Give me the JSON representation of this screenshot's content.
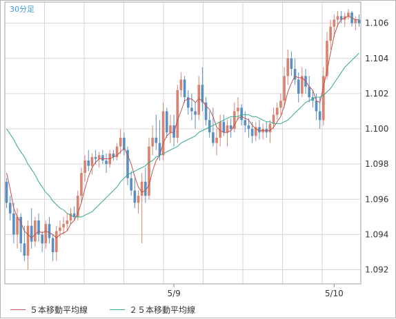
{
  "timeframe_label": "30分足",
  "colors": {
    "up": "#d9826f",
    "down": "#5b8fc4",
    "wick": "#8a8a8a",
    "ma5": "#c0504d",
    "ma25": "#33a889",
    "grid": "#d6d6d6",
    "axis_text": "#333333",
    "label_accent": "#3a9be0"
  },
  "legend": {
    "ma5": "５本移動平均線",
    "ma25": "２５本移動平均線"
  },
  "chart_data": {
    "type": "candlestick",
    "title": "",
    "xlabel": "",
    "ylabel": "",
    "ylim": [
      1.0912,
      1.1072
    ],
    "yticks": [
      "1.092",
      "1.094",
      "1.096",
      "1.098",
      "1.100",
      "1.102",
      "1.104",
      "1.106"
    ],
    "xticks": [
      {
        "label": "5/9",
        "index": 47
      },
      {
        "label": "5/10",
        "index": 92
      }
    ],
    "grid": true,
    "legend_position": "bottom",
    "candles": [
      [
        1.097,
        1.0972,
        1.0955,
        1.0958
      ],
      [
        1.0958,
        1.0962,
        1.0948,
        1.0952
      ],
      [
        1.0952,
        1.0958,
        1.0935,
        1.094
      ],
      [
        1.094,
        1.0955,
        1.0932,
        1.095
      ],
      [
        1.095,
        1.0952,
        1.093,
        1.0935
      ],
      [
        1.0935,
        1.0945,
        1.0925,
        1.0928
      ],
      [
        1.0928,
        1.0948,
        1.092,
        1.0945
      ],
      [
        1.0945,
        1.0955,
        1.0932,
        1.0936
      ],
      [
        1.0936,
        1.095,
        1.0933,
        1.0948
      ],
      [
        1.0948,
        1.0952,
        1.0936,
        1.094
      ],
      [
        1.094,
        1.0942,
        1.093,
        1.0935
      ],
      [
        1.0935,
        1.0948,
        1.0932,
        1.0946
      ],
      [
        1.0946,
        1.095,
        1.0935,
        1.0938
      ],
      [
        1.0938,
        1.094,
        1.0925,
        1.093
      ],
      [
        1.093,
        1.0945,
        1.0925,
        1.0942
      ],
      [
        1.0942,
        1.0948,
        1.0938,
        1.0944
      ],
      [
        1.0944,
        1.095,
        1.094,
        1.0946
      ],
      [
        1.0946,
        1.0952,
        1.0942,
        1.0948
      ],
      [
        1.0948,
        1.0955,
        1.0946,
        1.0952
      ],
      [
        1.0952,
        1.0956,
        1.0948,
        1.095
      ],
      [
        1.095,
        1.0965,
        1.0948,
        1.0962
      ],
      [
        1.0962,
        1.0978,
        1.0958,
        1.0975
      ],
      [
        1.0975,
        1.0985,
        1.097,
        1.0982
      ],
      [
        1.0982,
        1.0988,
        1.0976,
        1.0979
      ],
      [
        1.0979,
        1.0986,
        1.0974,
        1.0984
      ],
      [
        1.0984,
        1.0988,
        1.098,
        1.0983
      ],
      [
        1.0983,
        1.0987,
        1.0978,
        1.0985
      ],
      [
        1.0985,
        1.0988,
        1.098,
        1.0982
      ],
      [
        1.0982,
        1.0986,
        1.0975,
        1.098
      ],
      [
        1.098,
        1.0988,
        1.0978,
        1.0986
      ],
      [
        1.0986,
        1.0988,
        1.0982,
        1.0984
      ],
      [
        1.0984,
        1.0992,
        1.0982,
        1.099
      ],
      [
        1.099,
        1.1,
        1.0986,
        1.0995
      ],
      [
        1.0995,
        1.0998,
        1.0985,
        1.0988
      ],
      [
        1.0988,
        1.099,
        1.0968,
        1.0972
      ],
      [
        1.0972,
        1.0976,
        1.0962,
        1.0965
      ],
      [
        1.0965,
        1.0972,
        1.0955,
        1.0958
      ],
      [
        1.0958,
        1.0965,
        1.0952,
        1.0962
      ],
      [
        1.0962,
        1.0975,
        1.0935,
        1.097
      ],
      [
        1.097,
        1.0978,
        1.0958,
        1.0962
      ],
      [
        1.0962,
        1.0995,
        1.096,
        1.099
      ],
      [
        1.099,
        1.1002,
        1.0985,
        1.0995
      ],
      [
        1.0995,
        1.1008,
        1.0988,
        1.0992
      ],
      [
        1.0992,
        1.1005,
        1.0982,
        1.0985
      ],
      [
        1.0985,
        1.1015,
        1.0982,
        1.101
      ],
      [
        1.101,
        1.1012,
        1.0995,
        1.0998
      ],
      [
        1.0998,
        1.1008,
        1.0992,
        1.1002
      ],
      [
        1.1002,
        1.1008,
        1.099,
        1.0995
      ],
      [
        1.0995,
        1.1025,
        1.0992,
        1.1022
      ],
      [
        1.1022,
        1.1032,
        1.1018,
        1.1028
      ],
      [
        1.1028,
        1.103,
        1.1015,
        1.1018
      ],
      [
        1.1018,
        1.1022,
        1.1008,
        1.1012
      ],
      [
        1.1012,
        1.102,
        1.1005,
        1.101
      ],
      [
        1.101,
        1.1015,
        1.1,
        1.1008
      ],
      [
        1.1008,
        1.103,
        1.1005,
        1.1025
      ],
      [
        1.1025,
        1.1035,
        1.101,
        1.1015
      ],
      [
        1.1015,
        1.1018,
        1.1002,
        1.1005
      ],
      [
        1.1005,
        1.101,
        1.0995,
        1.0998
      ],
      [
        1.0998,
        1.1012,
        1.099,
        1.0992
      ],
      [
        1.0992,
        1.1,
        1.0985,
        1.0995
      ],
      [
        1.0995,
        1.1008,
        1.099,
        1.1004
      ],
      [
        1.1004,
        1.1008,
        1.0996,
        1.0998
      ],
      [
        1.0998,
        1.1005,
        1.099,
        1.1002
      ],
      [
        1.1002,
        1.1006,
        1.0995,
        1.1
      ],
      [
        1.1,
        1.1015,
        1.0998,
        1.101
      ],
      [
        1.101,
        1.1018,
        1.1005,
        1.1012
      ],
      [
        1.1012,
        1.1014,
        1.1002,
        1.1005
      ],
      [
        1.1005,
        1.101,
        1.0998,
        1.1002
      ],
      [
        1.1002,
        1.1006,
        1.0995,
        1.1
      ],
      [
        1.1,
        1.1004,
        1.0992,
        1.0996
      ],
      [
        1.0996,
        1.1004,
        1.0993,
        1.1001
      ],
      [
        1.1001,
        1.1005,
        1.0994,
        1.0998
      ],
      [
        1.0998,
        1.1003,
        1.0994,
        1.1
      ],
      [
        1.1,
        1.1004,
        1.0995,
        1.0998
      ],
      [
        1.0998,
        1.1005,
        1.0992,
        1.1003
      ],
      [
        1.1003,
        1.1012,
        1.1,
        1.1008
      ],
      [
        1.1008,
        1.1015,
        1.1005,
        1.1012
      ],
      [
        1.1012,
        1.102,
        1.1008,
        1.1016
      ],
      [
        1.1016,
        1.1035,
        1.1012,
        1.103
      ],
      [
        1.103,
        1.1045,
        1.1025,
        1.104
      ],
      [
        1.104,
        1.1044,
        1.103,
        1.1034
      ],
      [
        1.1034,
        1.104,
        1.1025,
        1.1028
      ],
      [
        1.1028,
        1.1032,
        1.1015,
        1.102
      ],
      [
        1.102,
        1.1035,
        1.1018,
        1.103
      ],
      [
        1.103,
        1.1034,
        1.102,
        1.1024
      ],
      [
        1.1024,
        1.103,
        1.1015,
        1.1018
      ],
      [
        1.1018,
        1.1022,
        1.1012,
        1.1016
      ],
      [
        1.1016,
        1.102,
        1.1005,
        1.101
      ],
      [
        1.101,
        1.1018,
        1.1,
        1.1005
      ],
      [
        1.1005,
        1.1035,
        1.1002,
        1.103
      ],
      [
        1.103,
        1.1055,
        1.1028,
        1.105
      ],
      [
        1.105,
        1.1062,
        1.1045,
        1.1058
      ],
      [
        1.1058,
        1.1065,
        1.1052,
        1.1062
      ],
      [
        1.1062,
        1.1067,
        1.1058,
        1.1064
      ],
      [
        1.1064,
        1.1067,
        1.106,
        1.1062
      ],
      [
        1.1062,
        1.1066,
        1.1058,
        1.1064
      ],
      [
        1.1064,
        1.1068,
        1.1062,
        1.1066
      ],
      [
        1.1066,
        1.1067,
        1.1058,
        1.106
      ],
      [
        1.106,
        1.1064,
        1.1056,
        1.1062
      ],
      [
        1.1062,
        1.1065,
        1.1058,
        1.106
      ]
    ],
    "series": [
      {
        "name": "５本移動平均線",
        "values": [
          1.0975,
          1.0966,
          1.0955,
          1.095,
          1.0947,
          1.0942,
          1.094,
          1.0938,
          1.094,
          1.0942,
          1.0941,
          1.0942,
          1.0941,
          1.094,
          1.0938,
          1.094,
          1.0941,
          1.0942,
          1.0946,
          1.0948,
          1.0952,
          1.0958,
          1.0966,
          1.0973,
          1.0978,
          1.0981,
          1.0983,
          1.0983,
          1.0983,
          1.0983,
          1.0984,
          1.0985,
          1.0987,
          1.0989,
          1.0985,
          1.098,
          1.0973,
          1.0967,
          1.0964,
          1.0965,
          1.0968,
          1.0976,
          1.0982,
          1.0985,
          1.0992,
          1.0996,
          1.0998,
          1.0998,
          1.1005,
          1.101,
          1.1016,
          1.1017,
          1.1017,
          1.1015,
          1.1017,
          1.1016,
          1.1013,
          1.1011,
          1.1007,
          1.1001,
          1.0999,
          1.0998,
          1.0998,
          1.0999,
          1.1002,
          1.1006,
          1.1007,
          1.1006,
          1.1005,
          1.1002,
          1.1,
          1.0999,
          1.0999,
          1.0999,
          1.0999,
          1.1001,
          1.1004,
          1.1007,
          1.1013,
          1.1021,
          1.1026,
          1.103,
          1.1029,
          1.1029,
          1.1027,
          1.1024,
          1.1022,
          1.1016,
          1.1015,
          1.1024,
          1.1033,
          1.1043,
          1.1053,
          1.1059,
          1.1062,
          1.1063,
          1.1064,
          1.1063,
          1.1062,
          1.1062
        ]
      },
      {
        "name": "２５本移動平均線",
        "values": [
          1.1,
          1.0997,
          1.0994,
          1.099,
          1.0987,
          1.0984,
          1.098,
          1.0977,
          1.0974,
          1.097,
          1.0967,
          1.0964,
          1.0962,
          1.0959,
          1.0957,
          1.0955,
          1.0954,
          1.0952,
          1.0951,
          1.095,
          1.095,
          1.095,
          1.0951,
          1.0952,
          1.0953,
          1.0955,
          1.0957,
          1.0959,
          1.0961,
          1.0963,
          1.0965,
          1.0967,
          1.097,
          1.0972,
          1.0974,
          1.0975,
          1.0976,
          1.0977,
          1.0978,
          1.0979,
          1.0981,
          1.0982,
          1.0984,
          1.0985,
          1.0986,
          1.0987,
          1.0988,
          1.0989,
          1.099,
          1.0992,
          1.0993,
          1.0994,
          1.0995,
          1.0996,
          1.0998,
          1.0999,
          1.1,
          1.1001,
          1.1002,
          1.1003,
          1.1004,
          1.1005,
          1.1006,
          1.1007,
          1.1007,
          1.1007,
          1.1008,
          1.1008,
          1.1008,
          1.1007,
          1.1007,
          1.1006,
          1.1005,
          1.1004,
          1.1004,
          1.1003,
          1.1003,
          1.1003,
          1.1004,
          1.1005,
          1.1007,
          1.1009,
          1.1011,
          1.1013,
          1.1015,
          1.1016,
          1.1017,
          1.1018,
          1.1018,
          1.1019,
          1.1021,
          1.1023,
          1.1026,
          1.1029,
          1.1032,
          1.1035,
          1.1037,
          1.1039,
          1.1041,
          1.1043
        ]
      }
    ]
  }
}
